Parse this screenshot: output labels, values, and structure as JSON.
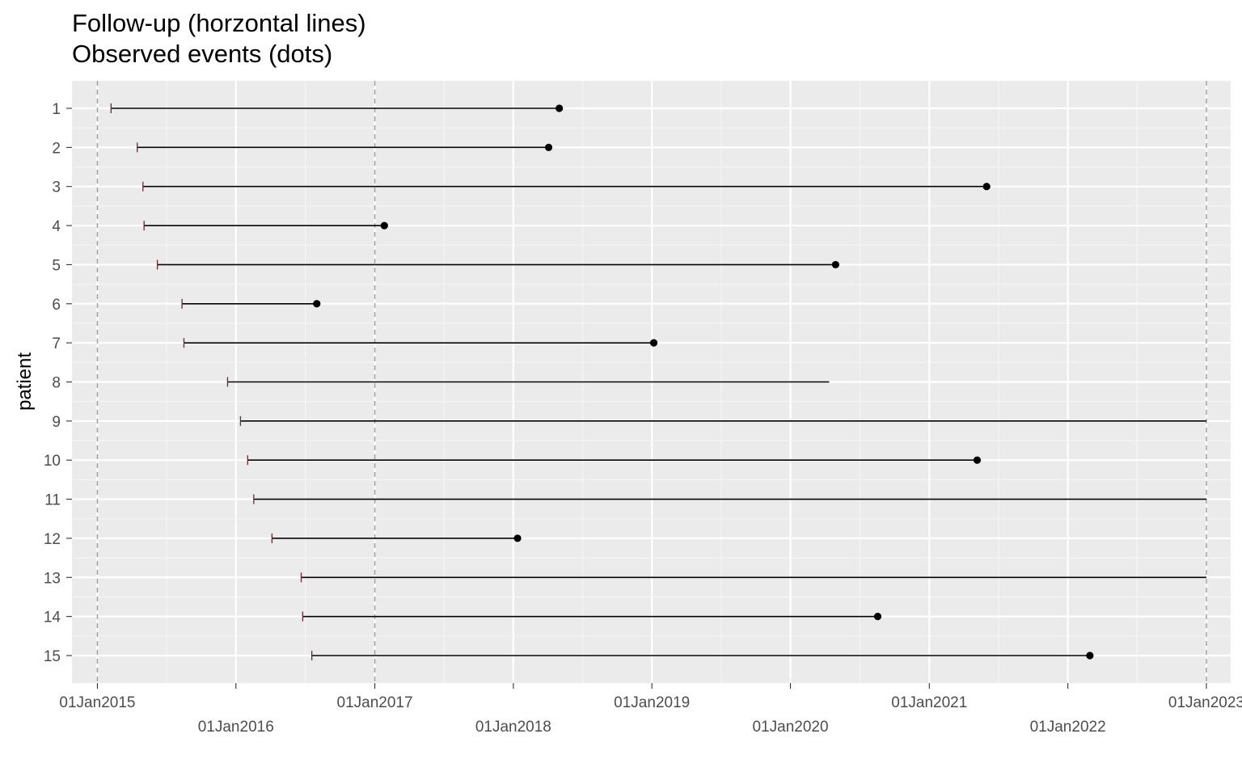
{
  "chart_data": {
    "type": "timeline",
    "title_lines": [
      "Follow-up (horzontal lines)",
      "Observed events (dots)"
    ],
    "xlabel": "",
    "ylabel": "patient",
    "x_ticks": [
      "01Jan2015",
      "01Jan2016",
      "01Jan2017",
      "01Jan2018",
      "01Jan2019",
      "01Jan2020",
      "01Jan2021",
      "01Jan2022",
      "01Jan2023"
    ],
    "xlim": [
      "2014-10-26",
      "2023-03-06"
    ],
    "reference_lines": [
      "2015-01-01",
      "2017-01-01",
      "2023-01-01"
    ],
    "grid": true,
    "patients": [
      {
        "id": "1",
        "start": "2015-02-06",
        "end": "2018-05-02",
        "event": true
      },
      {
        "id": "2",
        "start": "2015-04-16",
        "end": "2018-04-04",
        "event": true
      },
      {
        "id": "3",
        "start": "2015-05-01",
        "end": "2021-06-01",
        "event": true
      },
      {
        "id": "4",
        "start": "2015-05-04",
        "end": "2017-01-26",
        "event": true
      },
      {
        "id": "5",
        "start": "2015-06-08",
        "end": "2020-04-29",
        "event": true
      },
      {
        "id": "6",
        "start": "2015-08-12",
        "end": "2016-08-01",
        "event": true
      },
      {
        "id": "7",
        "start": "2015-08-17",
        "end": "2019-01-06",
        "event": true
      },
      {
        "id": "8",
        "start": "2015-12-10",
        "end": "2020-04-12",
        "event": false
      },
      {
        "id": "9",
        "start": "2016-01-13",
        "end": "2023-01-01",
        "event": false
      },
      {
        "id": "10",
        "start": "2016-02-01",
        "end": "2021-05-07",
        "event": true
      },
      {
        "id": "11",
        "start": "2016-02-17",
        "end": "2023-01-01",
        "event": false
      },
      {
        "id": "12",
        "start": "2016-04-05",
        "end": "2018-01-12",
        "event": true
      },
      {
        "id": "13",
        "start": "2016-06-21",
        "end": "2023-01-01",
        "event": false
      },
      {
        "id": "14",
        "start": "2016-06-25",
        "end": "2020-08-18",
        "event": true
      },
      {
        "id": "15",
        "start": "2016-07-19",
        "end": "2022-02-28",
        "event": true
      }
    ],
    "colors": {
      "panel": "#ebebeb",
      "grid_major": "#ffffff",
      "grid_minor": "#f5f5f5",
      "reference_line": "#9e9e9e",
      "segment": "#000000",
      "start_tick": "#6b2a2a",
      "axis_text": "#4d4d4d"
    }
  }
}
